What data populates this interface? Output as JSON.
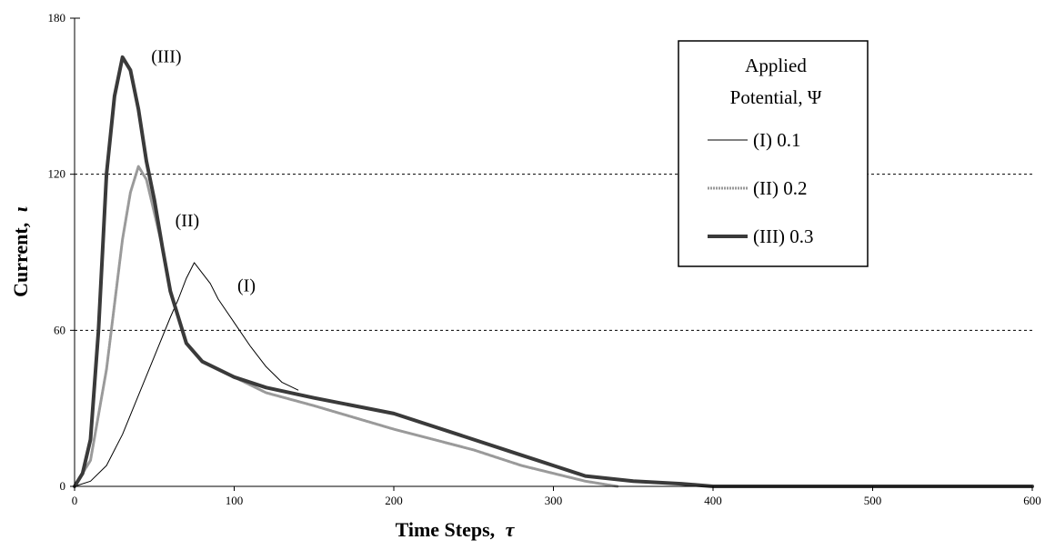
{
  "chart_data": {
    "type": "line",
    "title": "",
    "xlabel": "Time Steps,",
    "xlabel_symbol": "τ",
    "ylabel": "Current,",
    "ylabel_symbol": "ι",
    "xlim": [
      0,
      600
    ],
    "ylim": [
      0,
      180
    ],
    "xticks": [
      0,
      100,
      200,
      300,
      400,
      500,
      600
    ],
    "yticks": [
      0,
      60,
      120,
      180
    ],
    "grid": "horizontal dashed at 60 and 120",
    "legend": {
      "placement": "top-right",
      "title_line1": "Applied",
      "title_line2": "Potential, Ψ",
      "entries": [
        "(I)   0.1",
        "(II)  0.2",
        "(III) 0.3"
      ]
    },
    "annotations": [
      {
        "text": "(III)",
        "x": 48,
        "y": 163
      },
      {
        "text": "(II)",
        "x": 63,
        "y": 100
      },
      {
        "text": "(I)",
        "x": 102,
        "y": 75
      }
    ],
    "series": [
      {
        "name": "(I)   0.1",
        "color": "#000000",
        "x": [
          0,
          10,
          20,
          30,
          40,
          50,
          60,
          65,
          70,
          75,
          80,
          85,
          90,
          100,
          110,
          120,
          130,
          140
        ],
        "y": [
          0,
          2,
          8,
          20,
          35,
          50,
          65,
          72,
          80,
          86,
          82,
          78,
          72,
          63,
          54,
          46,
          40,
          37
        ]
      },
      {
        "name": "(II)  0.2",
        "color": "#9a9a9a",
        "x": [
          0,
          10,
          20,
          25,
          30,
          35,
          40,
          45,
          50,
          55,
          60,
          70,
          80,
          100,
          120,
          150,
          200,
          250,
          280,
          300,
          320,
          340
        ],
        "y": [
          0,
          10,
          45,
          70,
          95,
          113,
          123,
          118,
          105,
          92,
          75,
          55,
          48,
          42,
          36,
          31,
          22,
          14,
          8,
          5,
          2,
          0
        ]
      },
      {
        "name": "(III) 0.3",
        "color": "#3a3a3a",
        "x": [
          0,
          5,
          10,
          15,
          20,
          25,
          30,
          35,
          40,
          45,
          50,
          55,
          60,
          70,
          80,
          100,
          120,
          150,
          200,
          250,
          280,
          300,
          320,
          350,
          380,
          400,
          450,
          600
        ],
        "y": [
          0,
          5,
          18,
          60,
          120,
          150,
          165,
          160,
          145,
          125,
          110,
          92,
          75,
          55,
          48,
          42,
          38,
          34,
          28,
          18,
          12,
          8,
          4,
          2,
          1,
          0,
          0,
          0
        ]
      }
    ]
  }
}
